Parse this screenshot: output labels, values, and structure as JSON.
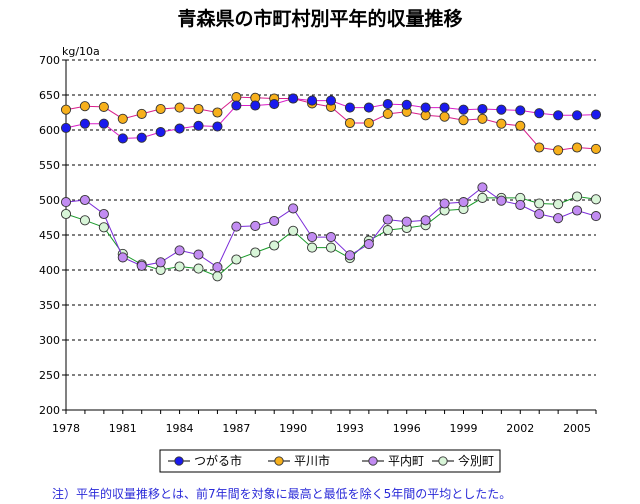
{
  "chart_data": {
    "type": "line",
    "title": "青森県の市町村別平年的収量推移",
    "unit": "kg/10a",
    "ylim": [
      200,
      700
    ],
    "yticks": [
      200,
      250,
      300,
      350,
      400,
      450,
      500,
      550,
      600,
      650,
      700
    ],
    "xlim": [
      1978,
      2006
    ],
    "xticks": [
      1978,
      1981,
      1984,
      1987,
      1990,
      1993,
      1996,
      1999,
      2002,
      2005
    ],
    "grid": "horizontal dashed",
    "legend_position": "bottom",
    "x": [
      1978,
      1979,
      1980,
      1981,
      1982,
      1983,
      1984,
      1985,
      1986,
      1987,
      1988,
      1989,
      1990,
      1991,
      1992,
      1993,
      1994,
      1995,
      1996,
      1997,
      1998,
      1999,
      2000,
      2001,
      2002,
      2003,
      2004,
      2005,
      2006
    ],
    "series": [
      {
        "name": "つがる市",
        "marker_color": "#1a1aee",
        "line_color": "#d81ec8",
        "values": [
          603,
          609,
          609,
          588,
          589,
          597,
          602,
          606,
          605,
          635,
          635,
          637,
          645,
          642,
          642,
          632,
          632,
          637,
          636,
          632,
          632,
          629,
          630,
          629,
          628,
          624,
          621,
          621,
          622
        ]
      },
      {
        "name": "平川市",
        "marker_color": "#f7b01c",
        "line_color": "#d81e8a",
        "values": [
          629,
          634,
          633,
          616,
          623,
          630,
          632,
          630,
          625,
          647,
          646,
          645,
          645,
          638,
          633,
          610,
          610,
          623,
          626,
          621,
          619,
          614,
          616,
          609,
          606,
          575,
          571,
          575,
          573
        ]
      },
      {
        "name": "平内町",
        "marker_color": "#c28cf2",
        "line_color": "#7a2ad8",
        "values": [
          497,
          500,
          480,
          418,
          406,
          411,
          428,
          422,
          404,
          462,
          463,
          470,
          488,
          447,
          447,
          421,
          437,
          472,
          469,
          471,
          495,
          497,
          518,
          499,
          493,
          480,
          474,
          485,
          477
        ]
      },
      {
        "name": "今別町",
        "marker_color": "#d8f5d8",
        "line_color": "#1a9a2a",
        "values": [
          480,
          471,
          461,
          423,
          408,
          400,
          405,
          402,
          391,
          415,
          425,
          435,
          456,
          432,
          432,
          417,
          442,
          457,
          460,
          464,
          485,
          487,
          503,
          503,
          503,
          495,
          494,
          505,
          501
        ]
      }
    ],
    "note": "注）平年的収量推移とは、前7年間を対象に最高と最低を除く5年間の平均としたた。"
  }
}
